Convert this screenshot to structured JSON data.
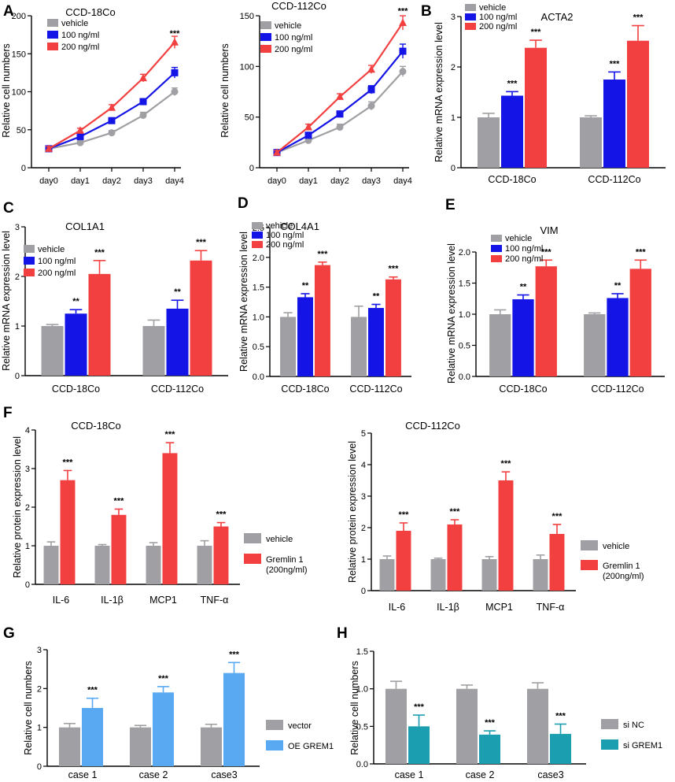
{
  "colors": {
    "vehicle": "#a0a0a4",
    "blue": "#1414e6",
    "red": "#f24040",
    "lightblue": "#58a8f2",
    "teal": "#1a9eb0"
  },
  "panels": [
    {
      "id": "A1",
      "label": "A",
      "kind": "line",
      "title": "CCD-18Co",
      "ylabel": "Relative cell numbers",
      "ylim": [
        0,
        200
      ],
      "yticks": [
        0,
        50,
        100,
        150,
        200
      ],
      "categories": [
        "day0",
        "day1",
        "day2",
        "day3",
        "day4"
      ],
      "series": [
        {
          "name": "vehicle",
          "values": [
            25,
            33,
            46,
            69,
            100
          ],
          "errors": [
            3,
            3,
            3,
            4,
            5
          ],
          "marker": "circle",
          "color_key": "vehicle"
        },
        {
          "name": "100 ng/ml",
          "values": [
            25,
            41,
            62,
            87,
            125
          ],
          "errors": [
            3,
            3,
            3,
            4,
            7
          ],
          "marker": "square",
          "color_key": "blue"
        },
        {
          "name": "200 ng/ml",
          "values": [
            25,
            49,
            79,
            118,
            165
          ],
          "errors": [
            3,
            3,
            4,
            5,
            8
          ],
          "marker": "triangle",
          "color_key": "red"
        }
      ],
      "annotations": [
        {
          "cat": 4,
          "value": 173,
          "text": "***"
        }
      ]
    },
    {
      "id": "A2",
      "label": "",
      "kind": "line",
      "title": "CCD-112Co",
      "ylabel": "Relative cell numbers",
      "ylim": [
        0,
        150
      ],
      "yticks": [
        0,
        50,
        100,
        150
      ],
      "categories": [
        "day0",
        "day1",
        "day2",
        "day3",
        "day4"
      ],
      "series": [
        {
          "name": "vehicle",
          "values": [
            15,
            27,
            40,
            61,
            95
          ],
          "errors": [
            2,
            2,
            3,
            4,
            5
          ],
          "marker": "circle",
          "color_key": "vehicle"
        },
        {
          "name": "100 ng/ml",
          "values": [
            15,
            32,
            53,
            77,
            115
          ],
          "errors": [
            2,
            3,
            3,
            4,
            7
          ],
          "marker": "square",
          "color_key": "blue"
        },
        {
          "name": "200 ng/ml",
          "values": [
            15,
            40,
            70,
            97,
            143
          ],
          "errors": [
            2,
            3,
            3,
            4,
            7
          ],
          "marker": "triangle",
          "color_key": "red"
        }
      ],
      "annotations": [
        {
          "cat": 4,
          "value": 152,
          "text": "***"
        }
      ]
    },
    {
      "id": "B",
      "label": "B",
      "kind": "bar",
      "title": "ACTA2",
      "ylabel": "Relative mRNA expression level",
      "ylim": [
        0,
        3
      ],
      "yticks": [
        0,
        1,
        2,
        3
      ],
      "groups": [
        "CCD-18Co",
        "CCD-112Co"
      ],
      "series": [
        {
          "name": "vehicle",
          "values": [
            1.0,
            1.0
          ],
          "errors": [
            0.08,
            0.03
          ],
          "color_key": "vehicle"
        },
        {
          "name": "100 ng/ml",
          "values": [
            1.43,
            1.75
          ],
          "errors": [
            0.08,
            0.15
          ],
          "color_key": "blue"
        },
        {
          "name": "200 ng/ml",
          "values": [
            2.38,
            2.52
          ],
          "errors": [
            0.15,
            0.3
          ],
          "color_key": "red"
        }
      ],
      "stars": [
        [
          "",
          ""
        ],
        [
          "***",
          "***"
        ],
        [
          "***",
          "***"
        ]
      ]
    },
    {
      "id": "C",
      "label": "C",
      "kind": "bar",
      "title": "COL1A1",
      "ylabel": "Relative mRNA expression level",
      "ylim": [
        0,
        3
      ],
      "yticks": [
        0,
        1,
        2,
        3
      ],
      "groups": [
        "CCD-18Co",
        "CCD-112Co"
      ],
      "series": [
        {
          "name": "vehicle",
          "values": [
            1.0,
            1.0
          ],
          "errors": [
            0.03,
            0.12
          ],
          "color_key": "vehicle"
        },
        {
          "name": "100 ng/ml",
          "values": [
            1.25,
            1.35
          ],
          "errors": [
            0.08,
            0.17
          ],
          "color_key": "blue"
        },
        {
          "name": "200 ng/ml",
          "values": [
            2.05,
            2.32
          ],
          "errors": [
            0.27,
            0.2
          ],
          "color_key": "red"
        }
      ],
      "stars": [
        [
          "",
          ""
        ],
        [
          "**",
          "**"
        ],
        [
          "***",
          "***"
        ]
      ]
    },
    {
      "id": "D",
      "label": "D",
      "kind": "bar",
      "title": "COL4A1",
      "ylabel": "Relative mRNA expression level",
      "ylim": [
        0,
        2.5
      ],
      "yticks": [
        0,
        0.5,
        1.0,
        1.5,
        2.0,
        2.5
      ],
      "groups": [
        "CCD-18Co",
        "CCD-112Co"
      ],
      "series": [
        {
          "name": "vehicle",
          "values": [
            1.0,
            1.0
          ],
          "errors": [
            0.07,
            0.18
          ],
          "color_key": "vehicle"
        },
        {
          "name": "100 ng/ml",
          "values": [
            1.33,
            1.15
          ],
          "errors": [
            0.06,
            0.06
          ],
          "color_key": "blue"
        },
        {
          "name": "200 ng/ml",
          "values": [
            1.87,
            1.63
          ],
          "errors": [
            0.05,
            0.04
          ],
          "color_key": "red"
        }
      ],
      "stars": [
        [
          "",
          ""
        ],
        [
          "**",
          "**"
        ],
        [
          "***",
          "***"
        ]
      ]
    },
    {
      "id": "E",
      "label": "E",
      "kind": "bar",
      "title": "VIM",
      "ylabel": "Relative mRNA expression level",
      "ylim": [
        0,
        2.0
      ],
      "yticks": [
        0,
        0.5,
        1.0,
        1.5,
        2.0
      ],
      "groups": [
        "CCD-18Co",
        "CCD-112Co"
      ],
      "series": [
        {
          "name": "vehicle",
          "values": [
            1.0,
            1.0
          ],
          "errors": [
            0.07,
            0.02
          ],
          "color_key": "vehicle"
        },
        {
          "name": "100 ng/ml",
          "values": [
            1.24,
            1.26
          ],
          "errors": [
            0.07,
            0.07
          ],
          "color_key": "blue"
        },
        {
          "name": "200 ng/ml",
          "values": [
            1.77,
            1.73
          ],
          "errors": [
            0.1,
            0.14
          ],
          "color_key": "red"
        }
      ],
      "stars": [
        [
          "",
          ""
        ],
        [
          "**",
          "**"
        ],
        [
          "***",
          "***"
        ]
      ]
    },
    {
      "id": "F1",
      "label": "F",
      "kind": "bar",
      "title": "CCD-18Co",
      "ylabel": "Relative protein expression level",
      "ylim": [
        0,
        4
      ],
      "yticks": [
        0,
        1,
        2,
        3,
        4
      ],
      "groups": [
        "IL-6",
        "IL-1β",
        "MCP1",
        "TNF-α"
      ],
      "series": [
        {
          "name": "vehicle",
          "values": [
            1.0,
            1.0,
            1.0,
            1.0
          ],
          "errors": [
            0.1,
            0.03,
            0.08,
            0.13
          ],
          "color_key": "vehicle"
        },
        {
          "name": "Gremlin 1 (200ng/ml)",
          "values": [
            2.7,
            1.8,
            3.4,
            1.5
          ],
          "errors": [
            0.25,
            0.15,
            0.27,
            0.1
          ],
          "color_key": "red"
        }
      ],
      "stars": [
        [
          "",
          "",
          "",
          ""
        ],
        [
          "***",
          "***",
          "***",
          "***"
        ]
      ]
    },
    {
      "id": "F2",
      "label": "",
      "kind": "bar",
      "title": "CCD-112Co",
      "ylabel": "Relative protein expression level",
      "ylim": [
        0,
        5
      ],
      "yticks": [
        0,
        1,
        2,
        3,
        4,
        5
      ],
      "groups": [
        "IL-6",
        "IL-1β",
        "MCP1",
        "TNF-α"
      ],
      "series": [
        {
          "name": "vehicle",
          "values": [
            1.0,
            1.0,
            1.0,
            1.0
          ],
          "errors": [
            0.1,
            0.03,
            0.08,
            0.13
          ],
          "color_key": "vehicle"
        },
        {
          "name": "Gremlin 1 (200ng/ml)",
          "values": [
            1.9,
            2.1,
            3.5,
            1.8
          ],
          "errors": [
            0.25,
            0.15,
            0.27,
            0.3
          ],
          "color_key": "red"
        }
      ],
      "stars": [
        [
          "",
          "",
          "",
          ""
        ],
        [
          "***",
          "***",
          "***",
          "***"
        ]
      ]
    },
    {
      "id": "G",
      "label": "G",
      "kind": "bar",
      "title": "",
      "ylabel": "Relative cell numbers",
      "ylim": [
        0,
        3
      ],
      "yticks": [
        0,
        1,
        2,
        3
      ],
      "groups": [
        "case 1",
        "case 2",
        "case3"
      ],
      "series": [
        {
          "name": "vector",
          "values": [
            1.0,
            1.0,
            1.0
          ],
          "errors": [
            0.1,
            0.05,
            0.08
          ],
          "color_key": "vehicle"
        },
        {
          "name": "OE GREM1",
          "values": [
            1.5,
            1.9,
            2.4
          ],
          "errors": [
            0.25,
            0.15,
            0.27
          ],
          "color_key": "lightblue"
        }
      ],
      "stars": [
        [
          "",
          "",
          ""
        ],
        [
          "***",
          "***",
          "***"
        ]
      ]
    },
    {
      "id": "H",
      "label": "H",
      "kind": "bar",
      "title": "",
      "ylabel": "Relative cell numbers",
      "ylim": [
        0,
        1.5
      ],
      "yticks": [
        0.0,
        0.5,
        1.0,
        1.5
      ],
      "groups": [
        "case 1",
        "case 2",
        "case3"
      ],
      "series": [
        {
          "name": "si NC",
          "values": [
            1.0,
            1.0,
            1.0
          ],
          "errors": [
            0.1,
            0.05,
            0.08
          ],
          "color_key": "vehicle"
        },
        {
          "name": "si GREM1",
          "values": [
            0.5,
            0.39,
            0.4
          ],
          "errors": [
            0.15,
            0.05,
            0.13
          ],
          "color_key": "teal"
        }
      ],
      "stars": [
        [
          "",
          "",
          ""
        ],
        [
          "***",
          "***",
          "***"
        ]
      ]
    }
  ]
}
